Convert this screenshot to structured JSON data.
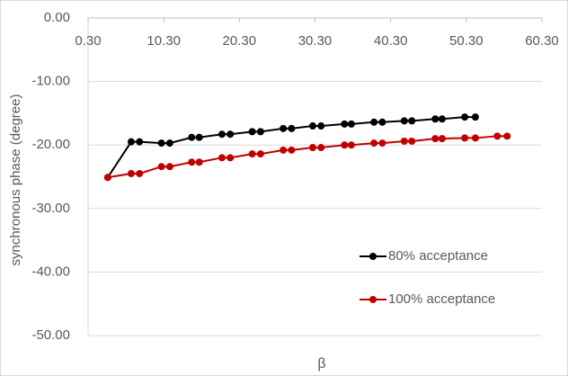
{
  "chart_data": {
    "type": "scatter",
    "x_label": "β",
    "y_label": "synchronous phase (degree)",
    "xlim": [
      0.3,
      60.3
    ],
    "xticks": [
      {
        "value": 0.3,
        "label": "0.30"
      },
      {
        "value": 10.3,
        "label": "10.30"
      },
      {
        "value": 20.3,
        "label": "20.30"
      },
      {
        "value": 30.3,
        "label": "30.30"
      },
      {
        "value": 40.3,
        "label": "40.30"
      },
      {
        "value": 50.3,
        "label": "50.30"
      },
      {
        "value": 60.3,
        "label": "60.30"
      }
    ],
    "ylim": [
      -50,
      0
    ],
    "yticks": [
      {
        "value": 0,
        "label": "0.00"
      },
      {
        "value": -10,
        "label": "-10.00"
      },
      {
        "value": -20,
        "label": "-20.00"
      },
      {
        "value": -30,
        "label": "-30.00"
      },
      {
        "value": -40,
        "label": "-40.00"
      },
      {
        "value": -50,
        "label": "-50.00"
      }
    ],
    "grid": true,
    "legend": "lower right",
    "series": [
      {
        "name": "80% acceptance",
        "color": "#000000",
        "x": [
          2.9,
          6.0,
          7.1,
          10.0,
          11.1,
          14.0,
          15.0,
          18.0,
          19.1,
          22.0,
          23.1,
          26.1,
          27.2,
          30.0,
          31.1,
          34.2,
          35.1,
          38.1,
          39.2,
          42.1,
          43.1,
          46.2,
          47.1,
          50.1,
          51.5
        ],
        "values": [
          -25.1,
          -19.5,
          -19.5,
          -19.7,
          -19.7,
          -18.8,
          -18.8,
          -18.3,
          -18.3,
          -17.9,
          -17.9,
          -17.4,
          -17.4,
          -17.0,
          -17.0,
          -16.7,
          -16.7,
          -16.4,
          -16.4,
          -16.2,
          -16.2,
          -15.9,
          -15.9,
          -15.6,
          -15.6
        ]
      },
      {
        "name": "100% acceptance",
        "color": "#c00000",
        "x": [
          2.9,
          6.0,
          7.1,
          10.0,
          11.1,
          14.0,
          15.0,
          18.0,
          19.1,
          22.0,
          23.1,
          26.1,
          27.2,
          30.0,
          31.1,
          34.2,
          35.1,
          38.1,
          39.2,
          42.1,
          43.1,
          46.2,
          47.1,
          50.1,
          51.5,
          54.4,
          55.7
        ],
        "values": [
          -25.1,
          -24.5,
          -24.5,
          -23.4,
          -23.4,
          -22.7,
          -22.7,
          -22.0,
          -22.0,
          -21.4,
          -21.4,
          -20.8,
          -20.8,
          -20.4,
          -20.4,
          -20.0,
          -20.0,
          -19.7,
          -19.7,
          -19.4,
          -19.4,
          -19.0,
          -19.0,
          -18.9,
          -18.9,
          -18.6,
          -18.6
        ]
      }
    ]
  }
}
